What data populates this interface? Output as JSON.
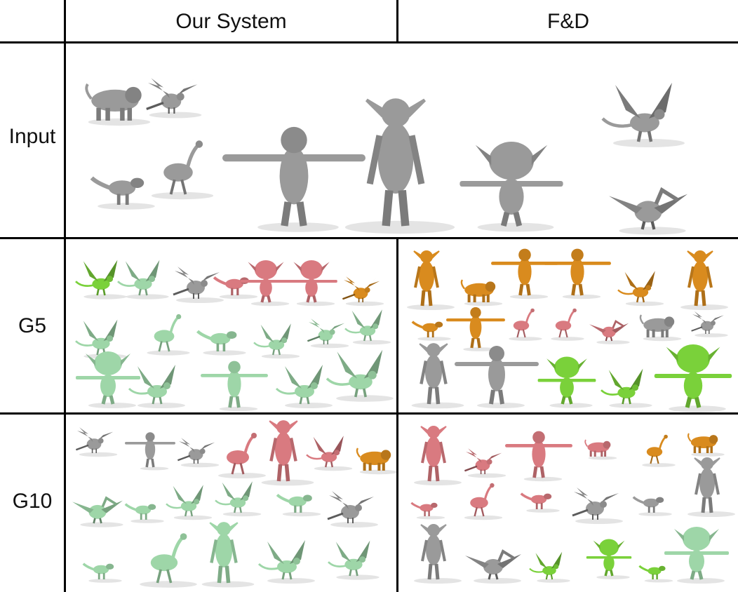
{
  "table": {
    "columns": [
      "Our System",
      "F&D"
    ],
    "rows": [
      "Input",
      "G5",
      "G10"
    ]
  },
  "colors": {
    "gray": "#9a9a9a",
    "green_light": "#9ed6a8",
    "green_bright": "#7ad13a",
    "pink": "#d97a80",
    "orange": "#d98b1e"
  },
  "panels": {
    "input": {
      "models": [
        "lion",
        "bird",
        "trex",
        "ostrich",
        "alien",
        "elf",
        "goblin",
        "dragon",
        "pelican"
      ]
    },
    "g5_ours": {
      "models": [
        "dragon",
        "dragon",
        "bird",
        "trex",
        "goblin",
        "goblin",
        "bird",
        "dragon",
        "ostrich",
        "trex",
        "dragon",
        "bird",
        "dragon",
        "goblin",
        "dragon",
        "alien",
        "dragon",
        "dragon"
      ]
    },
    "g5_fd": {
      "models": [
        "elf",
        "lion",
        "alien",
        "alien",
        "dragon",
        "elf",
        "trex",
        "alien",
        "ostrich",
        "ostrich",
        "pelican",
        "lion",
        "bird",
        "elf",
        "alien",
        "goblin",
        "dragon",
        "goblin"
      ]
    },
    "g10_ours": {
      "models": [
        "bird",
        "alien",
        "bird",
        "ostrich",
        "elf",
        "dragon",
        "lion",
        "pelican",
        "trex",
        "dragon",
        "dragon",
        "trex",
        "bird",
        "trex",
        "ostrich",
        "elf",
        "dragon",
        "dragon"
      ]
    },
    "g10_fd": {
      "models": [
        "elf",
        "bird",
        "alien",
        "lion",
        "ostrich",
        "lion",
        "trex",
        "ostrich",
        "trex",
        "bird",
        "trex",
        "elf",
        "elf",
        "pelican",
        "dragon",
        "goblin",
        "trex",
        "goblin"
      ]
    }
  }
}
